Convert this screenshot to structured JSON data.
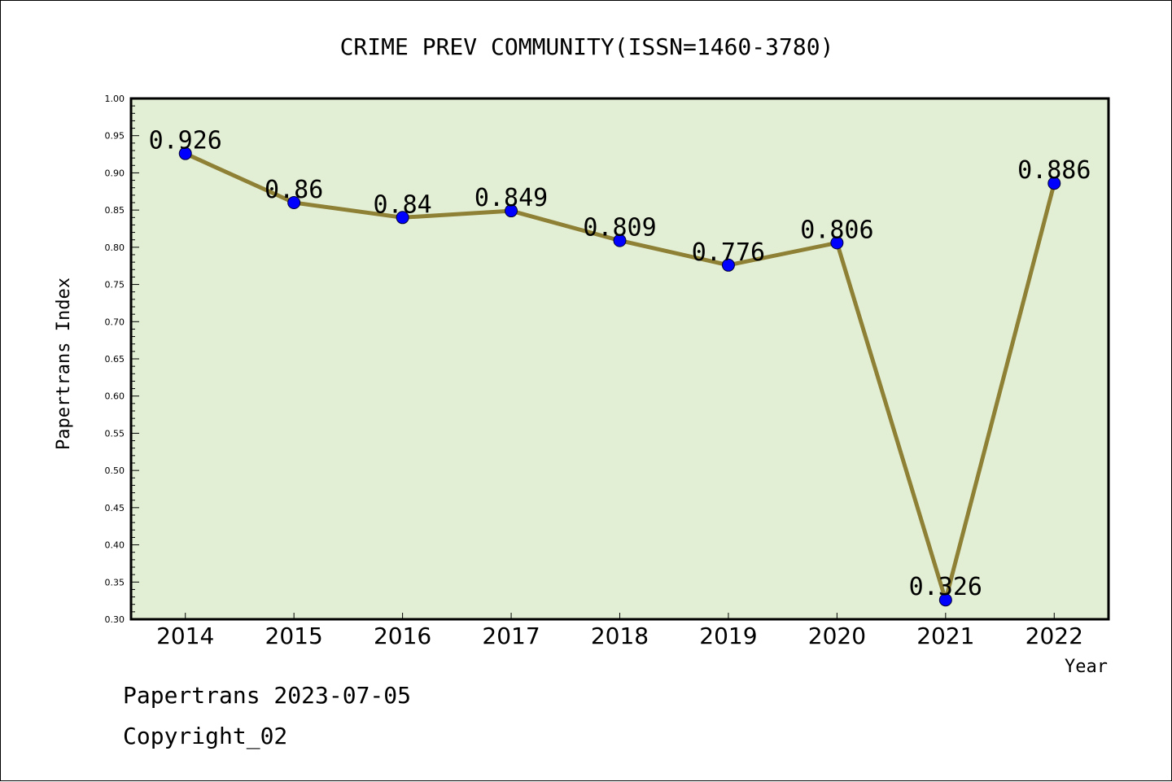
{
  "chart_data": {
    "type": "line",
    "title": "CRIME PREV COMMUNITY(ISSN=1460-3780)",
    "xlabel": "Year",
    "ylabel": "Papertrans Index",
    "categories": [
      "2014",
      "2015",
      "2016",
      "2017",
      "2018",
      "2019",
      "2020",
      "2021",
      "2022"
    ],
    "values": [
      0.926,
      0.86,
      0.84,
      0.849,
      0.809,
      0.776,
      0.806,
      0.326,
      0.886
    ],
    "data_labels": [
      "0.926",
      "0.86",
      "0.84",
      "0.849",
      "0.809",
      "0.776",
      "0.806",
      "0.326",
      "0.886"
    ],
    "ylim": [
      0.3,
      1.0
    ],
    "yticks": [
      "0.30",
      "0.35",
      "0.40",
      "0.45",
      "0.50",
      "0.55",
      "0.60",
      "0.65",
      "0.70",
      "0.75",
      "0.80",
      "0.85",
      "0.90",
      "0.95",
      "1.00"
    ],
    "grid": false,
    "colors": {
      "plot_background": "#e2efd4",
      "line": "#8e8035",
      "marker": "#0000ff"
    }
  },
  "footer": {
    "line1": "Papertrans 2023-07-05",
    "line2": "Copyright_02"
  }
}
